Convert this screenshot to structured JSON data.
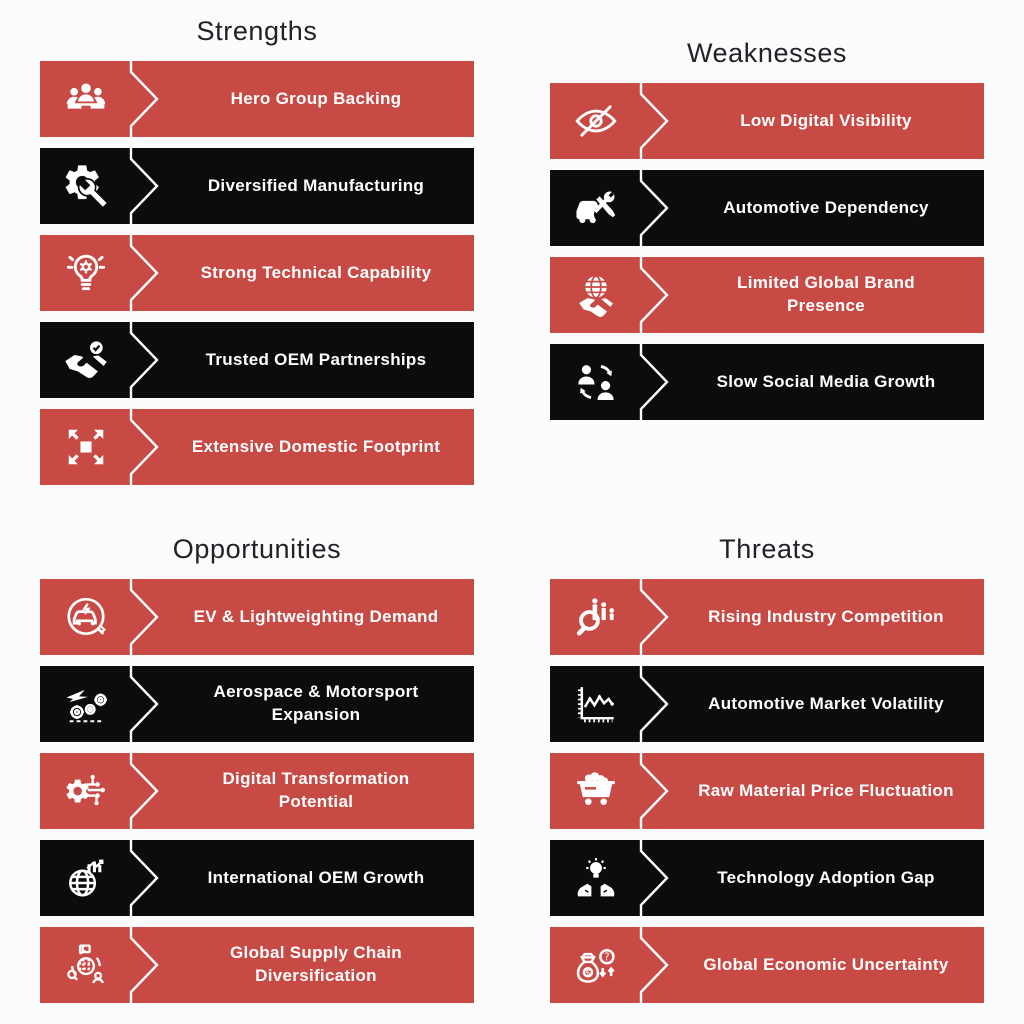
{
  "colors": {
    "red": "#c84a45",
    "black": "#0c0c0c",
    "title_text": "#202227",
    "banner_text": "#ffffff",
    "background": "#fcfcfc"
  },
  "quadrants": [
    {
      "id": "strengths",
      "title": "Strengths",
      "items": [
        {
          "label": "Hero Group Backing",
          "color": "red",
          "icon": "team-group-icon"
        },
        {
          "label": "Diversified Manufacturing",
          "color": "black",
          "icon": "gear-wrench-icon"
        },
        {
          "label": "Strong Technical Capability",
          "color": "red",
          "icon": "lightbulb-gear-icon"
        },
        {
          "label": "Trusted OEM Partnerships",
          "color": "black",
          "icon": "handshake-check-icon"
        },
        {
          "label": "Extensive Domestic Footprint",
          "color": "red",
          "icon": "expand-arrows-icon"
        }
      ]
    },
    {
      "id": "weaknesses",
      "title": "Weaknesses",
      "items": [
        {
          "label": "Low Digital Visibility",
          "color": "red",
          "icon": "eye-slash-icon"
        },
        {
          "label": "Automotive Dependency",
          "color": "black",
          "icon": "car-repair-icon"
        },
        {
          "label": "Limited Global Brand\nPresence",
          "color": "red",
          "icon": "globe-handshake-icon"
        },
        {
          "label": "Slow Social Media Growth",
          "color": "black",
          "icon": "user-exchange-icon"
        }
      ]
    },
    {
      "id": "opportunities",
      "title": "Opportunities",
      "items": [
        {
          "label": "EV & Lightweighting Demand",
          "color": "red",
          "icon": "electric-car-icon"
        },
        {
          "label": "Aerospace & Motorsport\nExpansion",
          "color": "black",
          "icon": "plane-gears-icon"
        },
        {
          "label": "Digital Transformation\nPotential",
          "color": "red",
          "icon": "gear-circuit-icon"
        },
        {
          "label": "International OEM Growth",
          "color": "black",
          "icon": "globe-growth-icon"
        },
        {
          "label": "Global Supply Chain\nDiversification",
          "color": "red",
          "icon": "supply-chain-icon"
        }
      ]
    },
    {
      "id": "threats",
      "title": "Threats",
      "items": [
        {
          "label": "Rising Industry Competition",
          "color": "red",
          "icon": "magnifier-bars-icon"
        },
        {
          "label": "Automotive Market Volatility",
          "color": "black",
          "icon": "volatility-chart-icon"
        },
        {
          "label": "Raw Material Price Fluctuation",
          "color": "red",
          "icon": "mine-cart-icon"
        },
        {
          "label": "Technology Adoption Gap",
          "color": "black",
          "icon": "hands-lightbulb-icon"
        },
        {
          "label": "Global Economic Uncertainty",
          "color": "red",
          "icon": "money-question-icon"
        }
      ]
    }
  ]
}
